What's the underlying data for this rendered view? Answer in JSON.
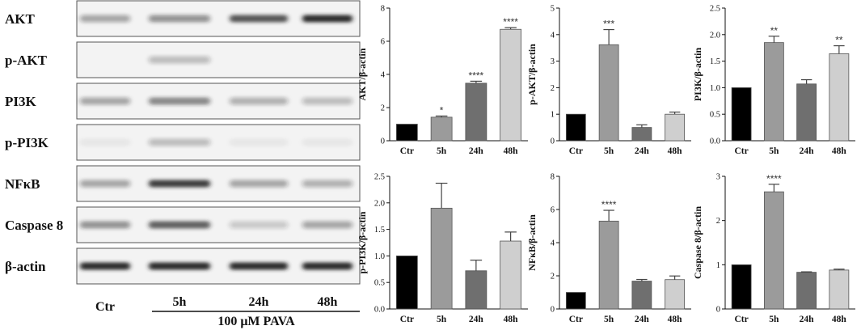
{
  "western_blot": {
    "rows": [
      {
        "label": "AKT",
        "intensity": [
          0.35,
          0.45,
          0.75,
          0.95
        ]
      },
      {
        "label": "p-AKT",
        "intensity": [
          0.0,
          0.25,
          0.0,
          0.0
        ]
      },
      {
        "label": "PI3K",
        "intensity": [
          0.35,
          0.5,
          0.3,
          0.25
        ]
      },
      {
        "label": "p-PI3K",
        "intensity": [
          0.05,
          0.25,
          0.05,
          0.05
        ]
      },
      {
        "label": "NFκB",
        "intensity": [
          0.35,
          0.85,
          0.35,
          0.3
        ]
      },
      {
        "label": "Caspase 8",
        "intensity": [
          0.45,
          0.7,
          0.2,
          0.35
        ]
      },
      {
        "label": "β-actin",
        "intensity": [
          0.95,
          0.95,
          0.95,
          0.95
        ]
      }
    ],
    "lanes": [
      "Ctr",
      "5h",
      "24h",
      "48h"
    ],
    "treatment": "100 μM PAVA",
    "colors": {
      "bg": "#f3f3f3",
      "band": "#222222",
      "frame": "#555555"
    }
  },
  "colors": {
    "Ctr": "#000000",
    "5h": "#9b9b9b",
    "24h": "#6f6f6f",
    "48h": "#cfcfcf",
    "edge": "#555555"
  },
  "chart_data": [
    {
      "type": "bar",
      "ylabel": "AKT/β-actin",
      "categories": [
        "Ctr",
        "5h",
        "24h",
        "48h"
      ],
      "values": [
        1.0,
        1.42,
        3.47,
        6.72
      ],
      "errors": [
        0,
        0.07,
        0.12,
        0.1
      ],
      "significance": [
        "",
        "*",
        "****",
        "****"
      ],
      "ylim": [
        0,
        8
      ],
      "yticks": [
        0,
        2,
        4,
        6,
        8
      ]
    },
    {
      "type": "bar",
      "ylabel": "p-AKT/β-actin",
      "categories": [
        "Ctr",
        "5h",
        "24h",
        "48h"
      ],
      "values": [
        1.0,
        3.62,
        0.5,
        1.0
      ],
      "errors": [
        0,
        0.57,
        0.1,
        0.08
      ],
      "significance": [
        "",
        "***",
        "",
        ""
      ],
      "ylim": [
        0,
        5
      ],
      "yticks": [
        0,
        1,
        2,
        3,
        4,
        5
      ]
    },
    {
      "type": "bar",
      "ylabel": "PI3K/β-actin",
      "categories": [
        "Ctr",
        "5h",
        "24h",
        "48h"
      ],
      "values": [
        1.0,
        1.85,
        1.07,
        1.64
      ],
      "errors": [
        0,
        0.12,
        0.08,
        0.15
      ],
      "significance": [
        "",
        "**",
        "",
        "**"
      ],
      "ylim": [
        0,
        2.5
      ],
      "yticks": [
        0.0,
        0.5,
        1.0,
        1.5,
        2.0,
        2.5
      ]
    },
    {
      "type": "bar",
      "ylabel": "p-PI3K/β-actin",
      "categories": [
        "Ctr",
        "5h",
        "24h",
        "48h"
      ],
      "values": [
        1.0,
        1.9,
        0.72,
        1.28
      ],
      "errors": [
        0,
        0.47,
        0.2,
        0.17
      ],
      "significance": [
        "",
        "",
        "",
        ""
      ],
      "ylim": [
        0,
        2.5
      ],
      "yticks": [
        0.0,
        0.5,
        1.0,
        1.5,
        2.0,
        2.5
      ]
    },
    {
      "type": "bar",
      "ylabel": "NFκB/β-actin",
      "categories": [
        "Ctr",
        "5h",
        "24h",
        "48h"
      ],
      "values": [
        1.0,
        5.3,
        1.68,
        1.77
      ],
      "errors": [
        0,
        0.65,
        0.1,
        0.22
      ],
      "significance": [
        "",
        "****",
        "",
        ""
      ],
      "ylim": [
        0,
        8
      ],
      "yticks": [
        0,
        2,
        4,
        6,
        8
      ]
    },
    {
      "type": "bar",
      "ylabel": "Caspase 8/β-actin",
      "categories": [
        "Ctr",
        "5h",
        "24h",
        "48h"
      ],
      "values": [
        1.0,
        2.65,
        0.83,
        0.88
      ],
      "errors": [
        0,
        0.17,
        0.01,
        0.02
      ],
      "significance": [
        "",
        "****",
        "",
        ""
      ],
      "ylim": [
        0,
        3
      ],
      "yticks": [
        0,
        1,
        2,
        3
      ]
    }
  ]
}
